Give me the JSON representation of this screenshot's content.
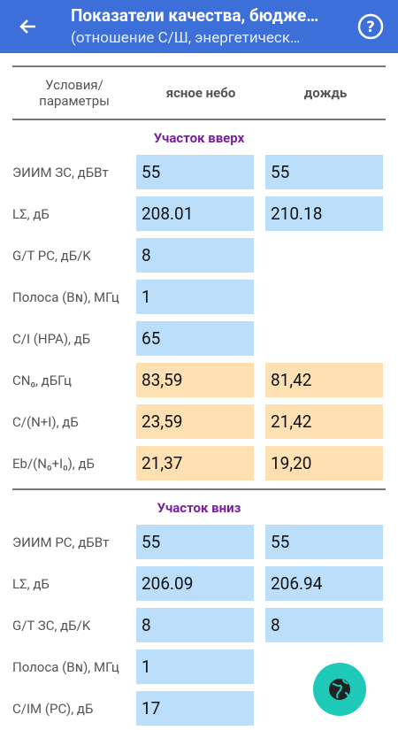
{
  "header": {
    "title": "Показатели качества, бюдже…",
    "subtitle": "(отношение С/Ш, энергетическ…"
  },
  "table": {
    "columns": [
      "Условия/\nпараметры",
      "ясное небо",
      "дождь"
    ],
    "sections": [
      {
        "title": "Участок вверх",
        "rows": [
          {
            "label": "ЭИИМ ЗС, дБВт",
            "values": [
              "55",
              "55"
            ],
            "kind": "input"
          },
          {
            "label": "LΣ, дБ",
            "values": [
              "208.01",
              "210.18"
            ],
            "kind": "input"
          },
          {
            "label": "G/T PC, дБ/K",
            "values": [
              "8"
            ],
            "kind": "input"
          },
          {
            "label": "Полоса (Bɴ), МГц",
            "values": [
              "1"
            ],
            "kind": "input"
          },
          {
            "label": "C/I (HPA), дБ",
            "values": [
              "65"
            ],
            "kind": "input"
          },
          {
            "label": "CN₀, дБГц",
            "values": [
              "83,59",
              "81,42"
            ],
            "kind": "result"
          },
          {
            "label": "C/(N+I), дБ",
            "values": [
              "23,59",
              "21,42"
            ],
            "kind": "result"
          },
          {
            "label": "Eb/(N₀+I₀), дБ",
            "values": [
              "21,37",
              "19,20"
            ],
            "kind": "result"
          }
        ]
      },
      {
        "title": "Участок вниз",
        "rows": [
          {
            "label": "ЭИИМ PC, дБВт",
            "values": [
              "55",
              "55"
            ],
            "kind": "input"
          },
          {
            "label": "LΣ, дБ",
            "values": [
              "206.09",
              "206.94"
            ],
            "kind": "input"
          },
          {
            "label": "G/T ЗС, дБ/K",
            "values": [
              "8",
              "8"
            ],
            "kind": "input"
          },
          {
            "label": "Полоса (Bɴ), МГц",
            "values": [
              "1"
            ],
            "kind": "input"
          },
          {
            "label": "C/IM (PC), дБ",
            "values": [
              "17"
            ],
            "kind": "input"
          }
        ]
      }
    ]
  }
}
